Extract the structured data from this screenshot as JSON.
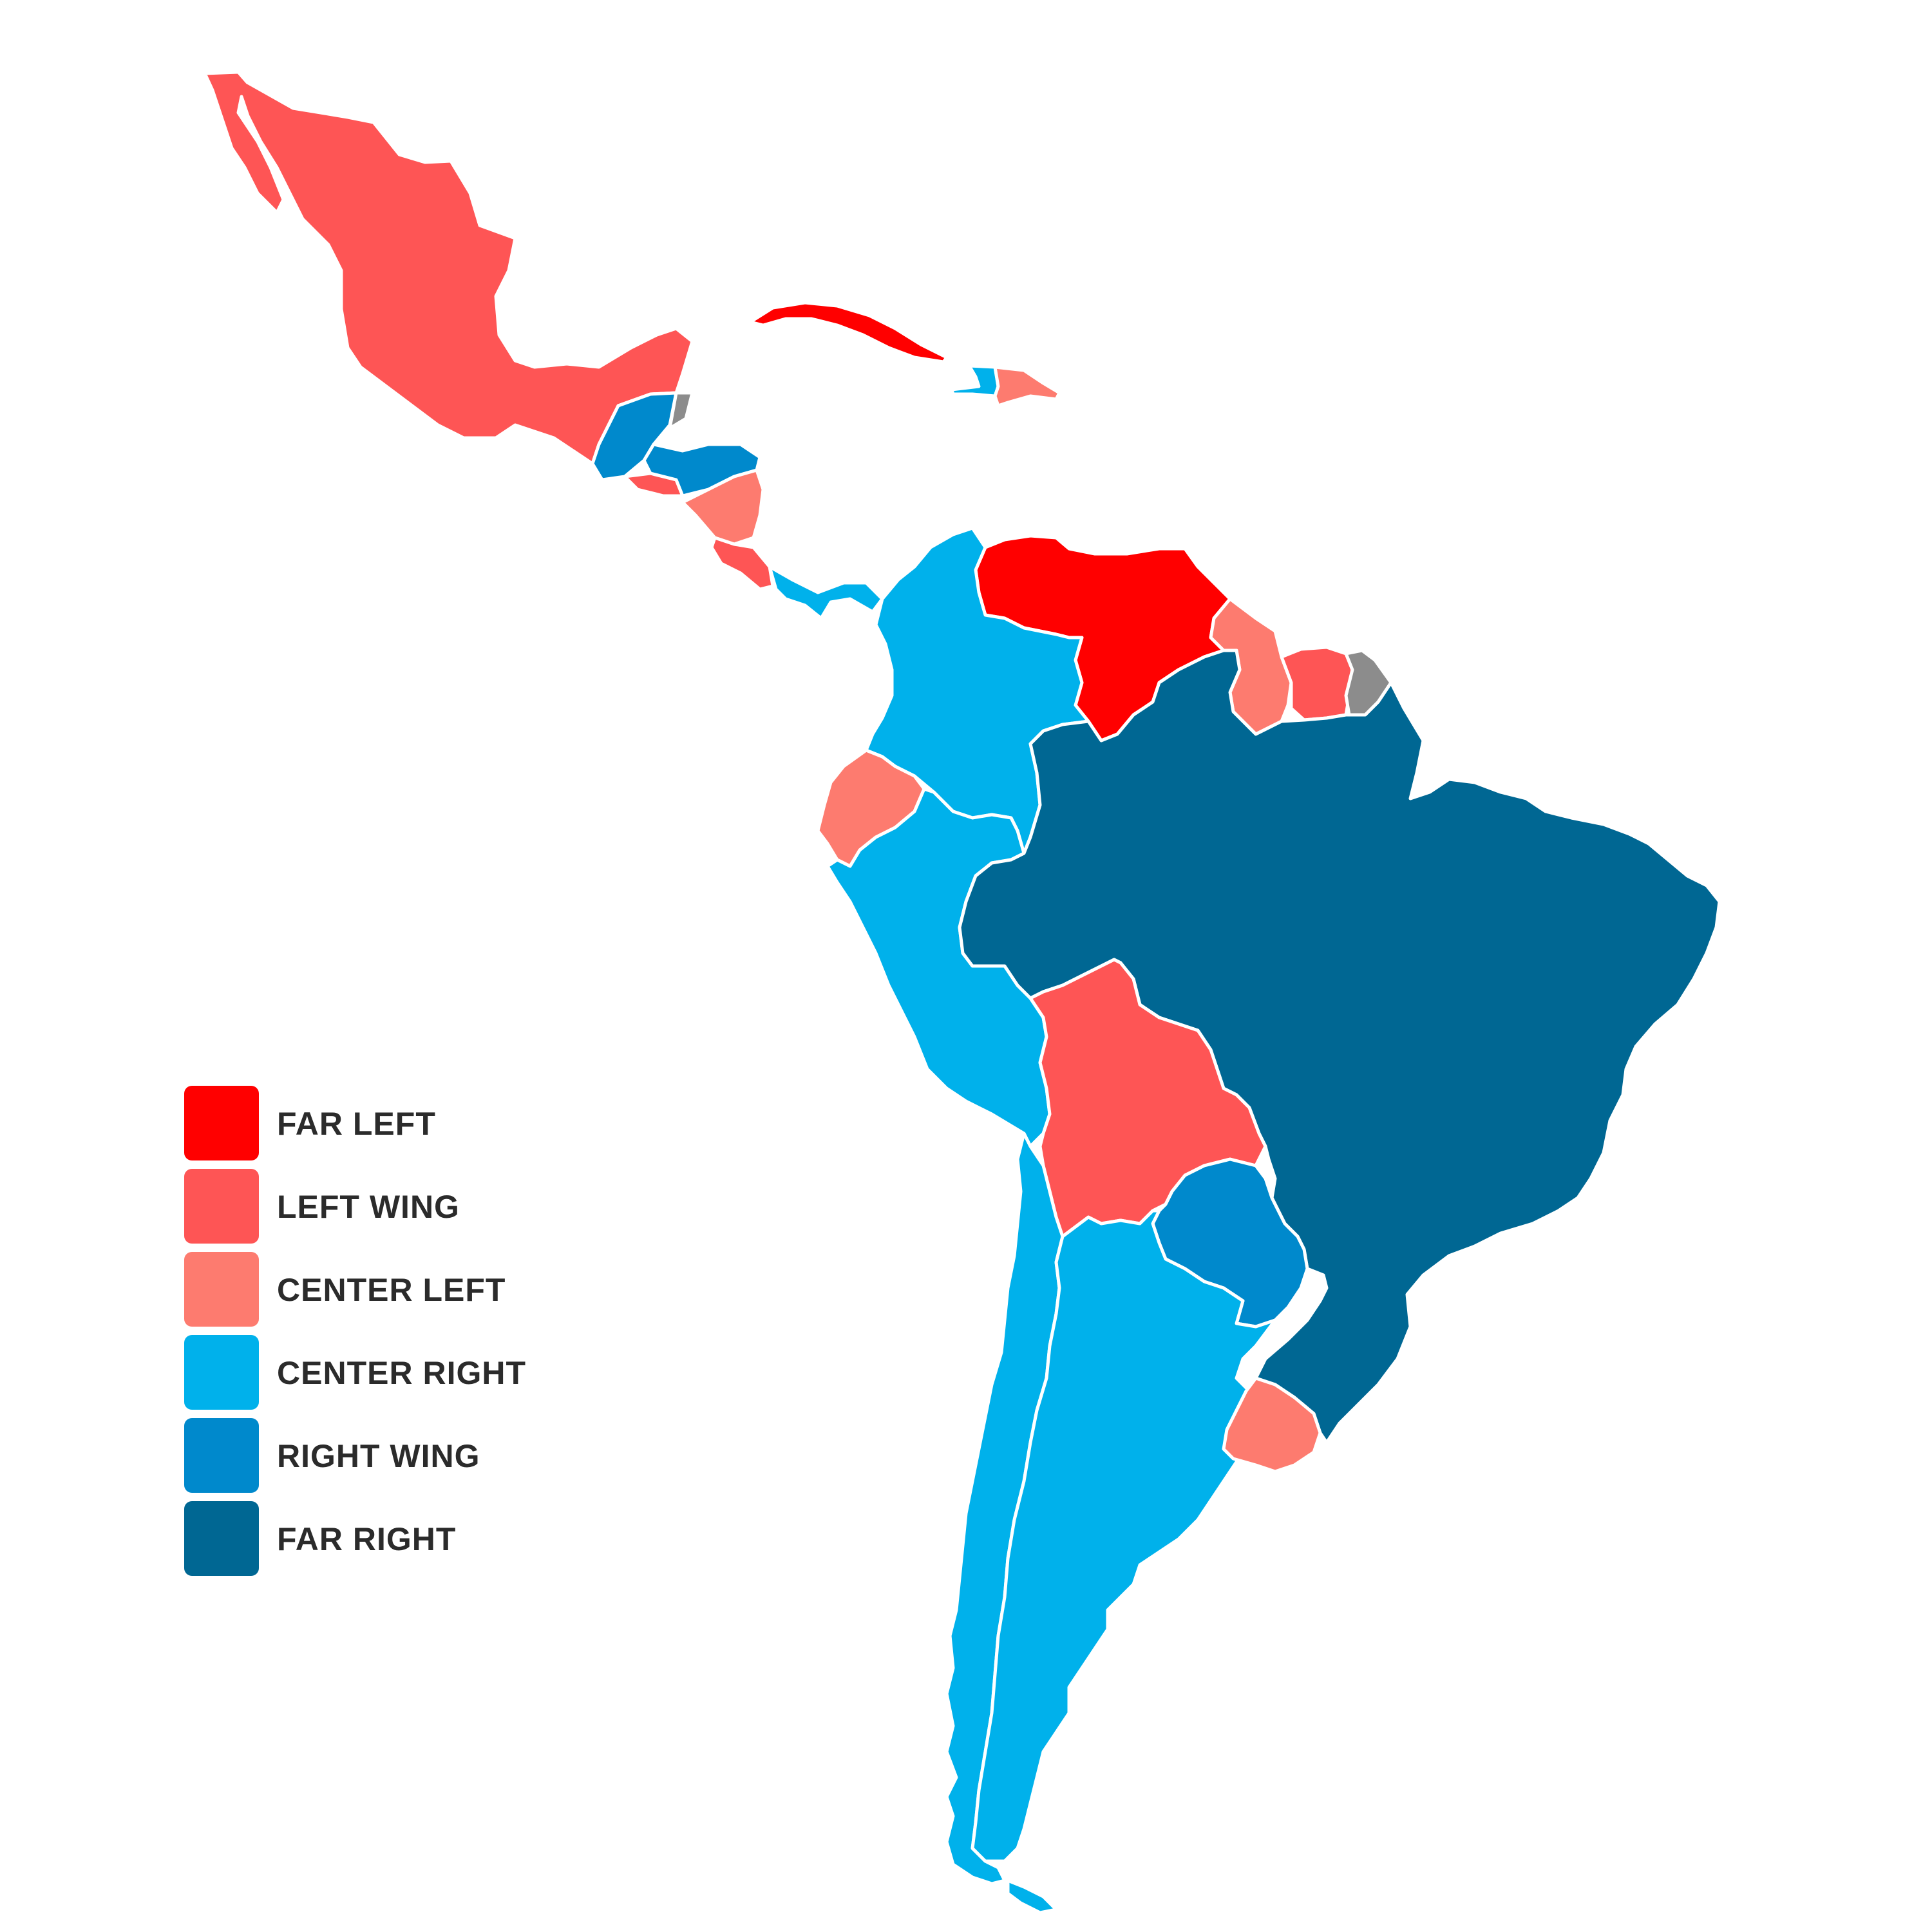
{
  "legend": {
    "items": [
      {
        "key": "far_left",
        "label": "FAR LEFT",
        "color": "#ff0000"
      },
      {
        "key": "left_wing",
        "label": "LEFT WING",
        "color": "#fe5555"
      },
      {
        "key": "center_left",
        "label": "CENTER LEFT",
        "color": "#fd7b6f"
      },
      {
        "key": "center_right",
        "label": "CENTER RIGHT",
        "color": "#00b1eb"
      },
      {
        "key": "right_wing",
        "label": "RIGHT WING",
        "color": "#0089cc"
      },
      {
        "key": "far_right",
        "label": "FAR RIGHT",
        "color": "#006793"
      }
    ]
  },
  "no_data_color": "#8c8c8c",
  "regions": [
    {
      "name": "mexico",
      "category": "left_wing"
    },
    {
      "name": "guatemala",
      "category": "right_wing"
    },
    {
      "name": "belize",
      "category": "no_data"
    },
    {
      "name": "el-salvador",
      "category": "left_wing"
    },
    {
      "name": "honduras",
      "category": "right_wing"
    },
    {
      "name": "nicaragua",
      "category": "center_left"
    },
    {
      "name": "costa-rica",
      "category": "left_wing"
    },
    {
      "name": "panama",
      "category": "center_right"
    },
    {
      "name": "cuba",
      "category": "far_left"
    },
    {
      "name": "haiti",
      "category": "center_right"
    },
    {
      "name": "dominican-republic",
      "category": "center_left"
    },
    {
      "name": "venezuela",
      "category": "far_left"
    },
    {
      "name": "guyana",
      "category": "center_left"
    },
    {
      "name": "suriname",
      "category": "left_wing"
    },
    {
      "name": "french-guiana",
      "category": "no_data"
    },
    {
      "name": "colombia",
      "category": "center_right"
    },
    {
      "name": "ecuador",
      "category": "center_left"
    },
    {
      "name": "peru",
      "category": "center_right"
    },
    {
      "name": "brazil",
      "category": "far_right"
    },
    {
      "name": "bolivia",
      "category": "left_wing"
    },
    {
      "name": "paraguay",
      "category": "right_wing"
    },
    {
      "name": "chile",
      "category": "center_right"
    },
    {
      "name": "argentina",
      "category": "center_right"
    },
    {
      "name": "uruguay",
      "category": "center_left"
    }
  ]
}
